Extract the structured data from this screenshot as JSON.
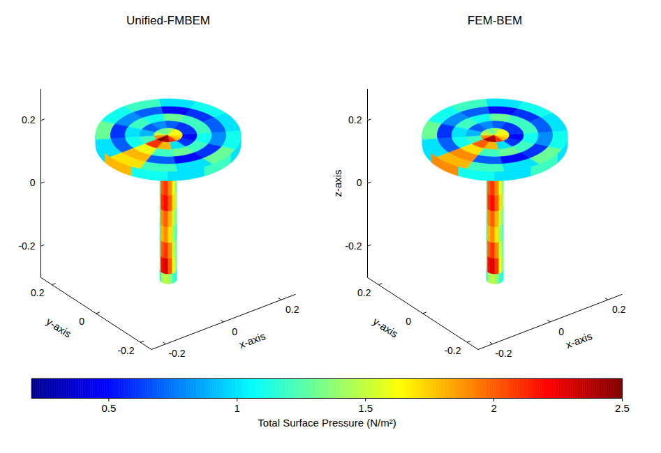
{
  "chart_data": [
    {
      "type": "surface3d",
      "title": "Unified-FMBEM",
      "xlabel": "x-axis",
      "ylabel": "y-axis",
      "xlim": [
        -0.25,
        0.25
      ],
      "ylim": [
        -0.25,
        0.25
      ],
      "zlim": [
        -0.3,
        0.3
      ],
      "xticks": [
        -0.2,
        0,
        0.2
      ],
      "yticks": [
        -0.2,
        0,
        0.2
      ],
      "zticks": [
        -0.2,
        0,
        0.2
      ],
      "top_pressure": [
        [
          1.6,
          1.4,
          1.3,
          1.3,
          1.5,
          1.9,
          2.5,
          2.4,
          2.1,
          1.8,
          1.7,
          1.6
        ],
        [
          0.6,
          0.7,
          0.8,
          0.7,
          0.9,
          1.2,
          2.1,
          1.8,
          1.0,
          0.6,
          0.5,
          0.6
        ],
        [
          1.2,
          1.3,
          1.1,
          1.2,
          1.0,
          1.1,
          1.6,
          1.2,
          1.3,
          1.2,
          1.1,
          1.2
        ],
        [
          0.6,
          0.5,
          0.7,
          0.8,
          0.6,
          0.7,
          1.8,
          0.7,
          0.5,
          0.6,
          0.8,
          0.7
        ],
        [
          1.1,
          1.0,
          1.2,
          1.1,
          1.3,
          1.0,
          1.7,
          1.2,
          1.0,
          1.3,
          1.1,
          1.0
        ]
      ],
      "rim_pressure": [
        1.0,
        1.8,
        1.1,
        1.0,
        1.2,
        1.0
      ],
      "stem_pressure": [
        [
          1.0,
          1.2,
          1.3,
          1.3,
          1.2,
          1.1
        ],
        [
          1.1,
          1.5,
          1.6,
          1.5,
          1.4,
          1.2
        ],
        [
          1.2,
          2.0,
          2.1,
          1.9,
          1.6,
          1.3
        ],
        [
          1.3,
          2.1,
          2.2,
          2.0,
          1.7,
          1.4
        ],
        [
          1.2,
          1.9,
          2.0,
          1.8,
          1.5,
          1.3
        ],
        [
          1.1,
          1.8,
          1.9,
          1.7,
          1.4,
          1.2
        ],
        [
          1.2,
          2.0,
          2.1,
          1.9,
          1.5,
          1.3
        ],
        [
          1.3,
          2.2,
          2.3,
          2.0,
          1.6,
          1.3
        ],
        [
          1.0,
          1.4,
          1.5,
          1.4,
          1.2,
          1.1
        ]
      ]
    },
    {
      "type": "surface3d",
      "title": "FEM-BEM",
      "xlabel": "x-axis",
      "ylabel": "y-axis",
      "zlabel": "z-axis",
      "xlim": [
        -0.25,
        0.25
      ],
      "ylim": [
        -0.25,
        0.25
      ],
      "zlim": [
        -0.3,
        0.3
      ],
      "xticks": [
        -0.2,
        0,
        0.2
      ],
      "yticks": [
        -0.2,
        0,
        0.2
      ],
      "zticks": [
        -0.2,
        0,
        0.2
      ],
      "top_pressure": [
        [
          1.6,
          1.4,
          1.3,
          1.4,
          1.5,
          1.9,
          2.4,
          2.4,
          2.1,
          1.8,
          1.7,
          1.6
        ],
        [
          0.6,
          0.7,
          0.8,
          0.7,
          0.9,
          1.2,
          2.0,
          1.8,
          1.0,
          0.6,
          0.5,
          0.6
        ],
        [
          1.2,
          1.3,
          1.1,
          1.2,
          1.0,
          1.1,
          1.7,
          1.2,
          1.3,
          1.2,
          1.1,
          1.2
        ],
        [
          0.6,
          0.5,
          0.7,
          0.8,
          0.6,
          0.7,
          1.9,
          0.7,
          0.5,
          0.6,
          0.8,
          0.7
        ],
        [
          1.1,
          1.0,
          1.2,
          1.1,
          1.3,
          1.0,
          1.8,
          1.2,
          1.0,
          1.3,
          1.1,
          1.0
        ]
      ],
      "rim_pressure": [
        1.0,
        1.9,
        1.1,
        1.0,
        1.2,
        1.0
      ],
      "stem_pressure": [
        [
          1.0,
          1.2,
          1.3,
          1.3,
          1.2,
          1.1
        ],
        [
          1.1,
          1.5,
          1.7,
          1.5,
          1.4,
          1.2
        ],
        [
          1.2,
          2.0,
          2.1,
          1.9,
          1.6,
          1.3
        ],
        [
          1.3,
          2.1,
          2.2,
          2.0,
          1.7,
          1.4
        ],
        [
          1.2,
          1.9,
          2.0,
          1.8,
          1.5,
          1.3
        ],
        [
          1.1,
          1.8,
          1.9,
          1.7,
          1.4,
          1.2
        ],
        [
          1.2,
          2.0,
          2.1,
          1.9,
          1.5,
          1.3
        ],
        [
          1.3,
          2.2,
          2.3,
          2.1,
          1.6,
          1.3
        ],
        [
          1.0,
          1.4,
          1.5,
          1.4,
          1.2,
          1.1
        ]
      ]
    }
  ],
  "geometry": {
    "disc_z": [
      0.15,
      0.18
    ],
    "ring_edges": [
      0,
      0.04,
      0.08,
      0.12,
      0.16,
      0.2
    ],
    "sector_edges_deg": [
      0,
      30,
      60,
      90,
      120,
      150,
      180,
      210,
      240,
      270,
      300,
      330,
      360
    ],
    "side_theta_edges_deg": [
      142.5,
      172.5,
      202.5,
      232.5,
      262.5,
      292.5,
      322.5
    ],
    "stem_radius": 0.023,
    "stem_z_edges": [
      0.15,
      0.1,
      0.05,
      0,
      -0.05,
      -0.1,
      -0.15,
      -0.2,
      -0.25,
      -0.28
    ]
  },
  "colorbar": {
    "label": "Total Surface Pressure (N/m²)",
    "range": [
      0.2,
      2.5
    ],
    "ticks": [
      0.5,
      1,
      1.5,
      2,
      2.5
    ]
  }
}
